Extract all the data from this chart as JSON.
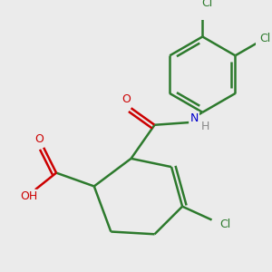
{
  "background_color": "#ebebeb",
  "bond_color": "#2d7a2d",
  "bond_width": 1.8,
  "atom_colors": {
    "O": "#cc0000",
    "N": "#0000cc",
    "Cl": "#2d7a2d",
    "H": "#888888",
    "C": "#2d7a2d"
  },
  "figsize": [
    3.0,
    3.0
  ],
  "dpi": 100
}
